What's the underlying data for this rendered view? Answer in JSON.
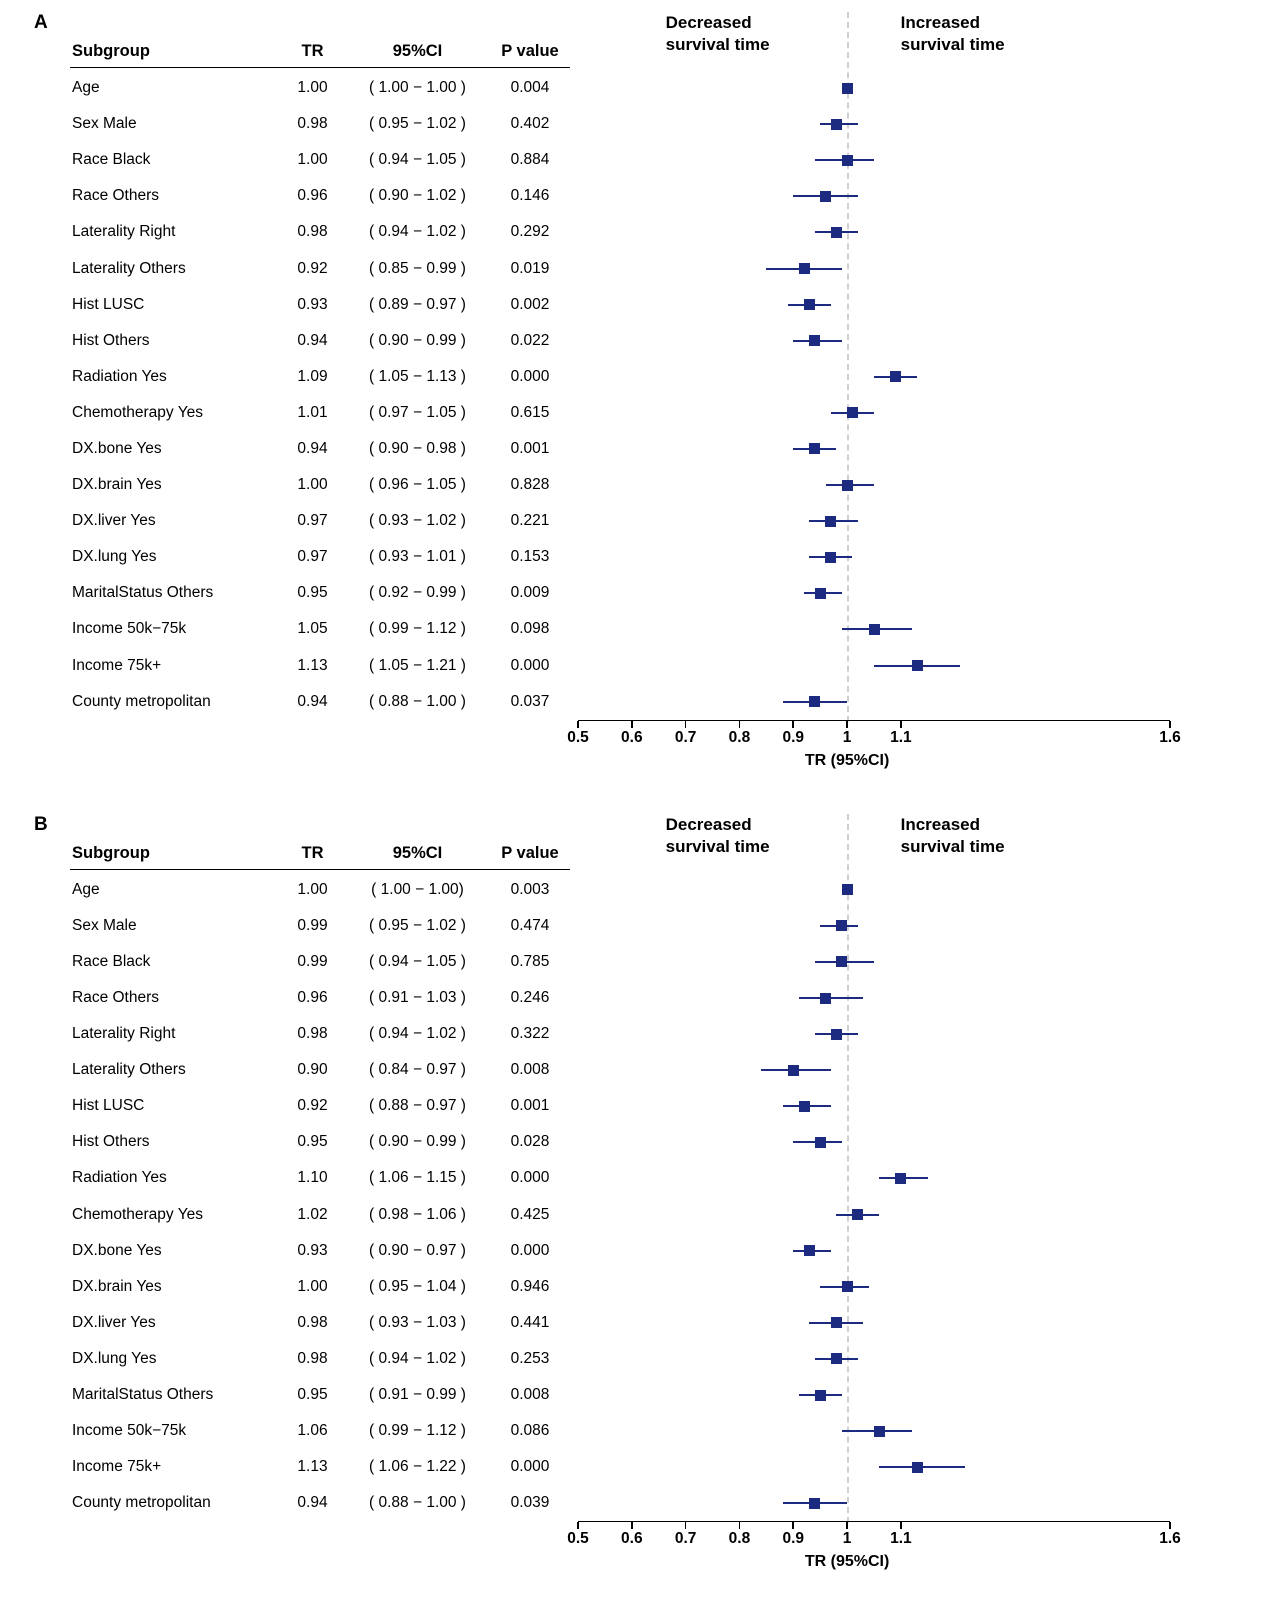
{
  "axis": {
    "label": "TR (95%CI)",
    "min": 0.5,
    "max": 1.6,
    "ref": 1,
    "ticks": [
      {
        "v": 0.5,
        "label": "0.5"
      },
      {
        "v": 0.6,
        "label": "0.6"
      },
      {
        "v": 0.7,
        "label": "0.7"
      },
      {
        "v": 0.8,
        "label": "0.8"
      },
      {
        "v": 0.9,
        "label": "0.9"
      },
      {
        "v": 1.0,
        "label": "1"
      },
      {
        "v": 1.1,
        "label": "1.1"
      },
      {
        "v": 1.6,
        "label": "1.6"
      }
    ]
  },
  "colors": {
    "marker": "#1c2b80",
    "ref_line": "#cfcfcf",
    "text": "#000000"
  },
  "chart_data": [
    {
      "type": "forest",
      "panel": "A",
      "columns": [
        "Subgroup",
        "TR",
        "95%CI",
        "P value"
      ],
      "header_left": "Decreased survival time",
      "header_right": "Increased survival time",
      "xlabel": "TR (95%CI)",
      "xlim": [
        0.5,
        1.6
      ],
      "ref_line": 1,
      "rows": [
        {
          "subgroup": "Age",
          "tr": "1.00",
          "ci": "( 1.00 − 1.00 )",
          "p": "0.004",
          "est": 1.0,
          "lo": 1.0,
          "hi": 1.0
        },
        {
          "subgroup": "Sex  Male",
          "tr": "0.98",
          "ci": "( 0.95 − 1.02 )",
          "p": "0.402",
          "est": 0.98,
          "lo": 0.95,
          "hi": 1.02
        },
        {
          "subgroup": "Race  Black",
          "tr": "1.00",
          "ci": "( 0.94 − 1.05 )",
          "p": "0.884",
          "est": 1.0,
          "lo": 0.94,
          "hi": 1.05
        },
        {
          "subgroup": "Race  Others",
          "tr": "0.96",
          "ci": "( 0.90 − 1.02 )",
          "p": "0.146",
          "est": 0.96,
          "lo": 0.9,
          "hi": 1.02
        },
        {
          "subgroup": "Laterality  Right",
          "tr": "0.98",
          "ci": "( 0.94 − 1.02 )",
          "p": "0.292",
          "est": 0.98,
          "lo": 0.94,
          "hi": 1.02
        },
        {
          "subgroup": "Laterality  Others",
          "tr": "0.92",
          "ci": "( 0.85 − 0.99 )",
          "p": "0.019",
          "est": 0.92,
          "lo": 0.85,
          "hi": 0.99
        },
        {
          "subgroup": "Hist  LUSC",
          "tr": "0.93",
          "ci": "( 0.89 − 0.97 )",
          "p": "0.002",
          "est": 0.93,
          "lo": 0.89,
          "hi": 0.97
        },
        {
          "subgroup": "Hist  Others",
          "tr": "0.94",
          "ci": "( 0.90 − 0.99 )",
          "p": "0.022",
          "est": 0.94,
          "lo": 0.9,
          "hi": 0.99
        },
        {
          "subgroup": "Radiation  Yes",
          "tr": "1.09",
          "ci": "( 1.05 − 1.13 )",
          "p": "0.000",
          "est": 1.09,
          "lo": 1.05,
          "hi": 1.13
        },
        {
          "subgroup": "Chemotherapy  Yes",
          "tr": "1.01",
          "ci": "( 0.97 − 1.05 )",
          "p": "0.615",
          "est": 1.01,
          "lo": 0.97,
          "hi": 1.05
        },
        {
          "subgroup": "DX.bone  Yes",
          "tr": "0.94",
          "ci": "( 0.90 − 0.98 )",
          "p": "0.001",
          "est": 0.94,
          "lo": 0.9,
          "hi": 0.98
        },
        {
          "subgroup": "DX.brain  Yes",
          "tr": "1.00",
          "ci": "( 0.96 − 1.05 )",
          "p": "0.828",
          "est": 1.0,
          "lo": 0.96,
          "hi": 1.05
        },
        {
          "subgroup": "DX.liver  Yes",
          "tr": "0.97",
          "ci": "( 0.93 − 1.02 )",
          "p": "0.221",
          "est": 0.97,
          "lo": 0.93,
          "hi": 1.02
        },
        {
          "subgroup": "DX.lung  Yes",
          "tr": "0.97",
          "ci": "( 0.93 − 1.01 )",
          "p": "0.153",
          "est": 0.97,
          "lo": 0.93,
          "hi": 1.01
        },
        {
          "subgroup": "MaritalStatus  Others",
          "tr": "0.95",
          "ci": "( 0.92 − 0.99 )",
          "p": "0.009",
          "est": 0.95,
          "lo": 0.92,
          "hi": 0.99
        },
        {
          "subgroup": "Income  50k−75k",
          "tr": "1.05",
          "ci": "( 0.99 − 1.12 )",
          "p": "0.098",
          "est": 1.05,
          "lo": 0.99,
          "hi": 1.12
        },
        {
          "subgroup": "Income  75k+",
          "tr": "1.13",
          "ci": "( 1.05 − 1.21 )",
          "p": "0.000",
          "est": 1.13,
          "lo": 1.05,
          "hi": 1.21
        },
        {
          "subgroup": "County  metropolitan",
          "tr": "0.94",
          "ci": "( 0.88 − 1.00 )",
          "p": "0.037",
          "est": 0.94,
          "lo": 0.88,
          "hi": 1.0
        }
      ]
    },
    {
      "type": "forest",
      "panel": "B",
      "columns": [
        "Subgroup",
        "TR",
        "95%CI",
        "P value"
      ],
      "header_left": "Decreased survival time",
      "header_right": "Increased survival time",
      "xlabel": "TR (95%CI)",
      "xlim": [
        0.5,
        1.6
      ],
      "ref_line": 1,
      "rows": [
        {
          "subgroup": "Age",
          "tr": "1.00",
          "ci": "( 1.00 − 1.00)",
          "p": "0.003",
          "est": 1.0,
          "lo": 1.0,
          "hi": 1.0
        },
        {
          "subgroup": "Sex  Male",
          "tr": "0.99",
          "ci": "( 0.95 − 1.02 )",
          "p": "0.474",
          "est": 0.99,
          "lo": 0.95,
          "hi": 1.02
        },
        {
          "subgroup": "Race  Black",
          "tr": "0.99",
          "ci": "( 0.94 − 1.05 )",
          "p": "0.785",
          "est": 0.99,
          "lo": 0.94,
          "hi": 1.05
        },
        {
          "subgroup": "Race  Others",
          "tr": "0.96",
          "ci": "( 0.91 − 1.03 )",
          "p": "0.246",
          "est": 0.96,
          "lo": 0.91,
          "hi": 1.03
        },
        {
          "subgroup": "Laterality  Right",
          "tr": "0.98",
          "ci": "( 0.94 − 1.02 )",
          "p": "0.322",
          "est": 0.98,
          "lo": 0.94,
          "hi": 1.02
        },
        {
          "subgroup": "Laterality  Others",
          "tr": "0.90",
          "ci": "( 0.84 − 0.97 )",
          "p": "0.008",
          "est": 0.9,
          "lo": 0.84,
          "hi": 0.97
        },
        {
          "subgroup": "Hist  LUSC",
          "tr": "0.92",
          "ci": "( 0.88 − 0.97 )",
          "p": "0.001",
          "est": 0.92,
          "lo": 0.88,
          "hi": 0.97
        },
        {
          "subgroup": "Hist  Others",
          "tr": "0.95",
          "ci": "( 0.90 − 0.99 )",
          "p": "0.028",
          "est": 0.95,
          "lo": 0.9,
          "hi": 0.99
        },
        {
          "subgroup": "Radiation  Yes",
          "tr": "1.10",
          "ci": "( 1.06 − 1.15 )",
          "p": "0.000",
          "est": 1.1,
          "lo": 1.06,
          "hi": 1.15
        },
        {
          "subgroup": "Chemotherapy  Yes",
          "tr": "1.02",
          "ci": "( 0.98 − 1.06 )",
          "p": "0.425",
          "est": 1.02,
          "lo": 0.98,
          "hi": 1.06
        },
        {
          "subgroup": "DX.bone  Yes",
          "tr": "0.93",
          "ci": "( 0.90 − 0.97 )",
          "p": "0.000",
          "est": 0.93,
          "lo": 0.9,
          "hi": 0.97
        },
        {
          "subgroup": "DX.brain  Yes",
          "tr": "1.00",
          "ci": "( 0.95 − 1.04 )",
          "p": "0.946",
          "est": 1.0,
          "lo": 0.95,
          "hi": 1.04
        },
        {
          "subgroup": "DX.liver  Yes",
          "tr": "0.98",
          "ci": "( 0.93 − 1.03 )",
          "p": "0.441",
          "est": 0.98,
          "lo": 0.93,
          "hi": 1.03
        },
        {
          "subgroup": "DX.lung  Yes",
          "tr": "0.98",
          "ci": "( 0.94 − 1.02 )",
          "p": "0.253",
          "est": 0.98,
          "lo": 0.94,
          "hi": 1.02
        },
        {
          "subgroup": "MaritalStatus  Others",
          "tr": "0.95",
          "ci": "( 0.91 − 0.99 )",
          "p": "0.008",
          "est": 0.95,
          "lo": 0.91,
          "hi": 0.99
        },
        {
          "subgroup": "Income  50k−75k",
          "tr": "1.06",
          "ci": "( 0.99 − 1.12 )",
          "p": "0.086",
          "est": 1.06,
          "lo": 0.99,
          "hi": 1.12
        },
        {
          "subgroup": "Income  75k+",
          "tr": "1.13",
          "ci": "( 1.06 − 1.22 )",
          "p": "0.000",
          "est": 1.13,
          "lo": 1.06,
          "hi": 1.22
        },
        {
          "subgroup": "County  metropolitan",
          "tr": "0.94",
          "ci": "( 0.88 − 1.00 )",
          "p": "0.039",
          "est": 0.94,
          "lo": 0.88,
          "hi": 1.0
        }
      ]
    }
  ]
}
